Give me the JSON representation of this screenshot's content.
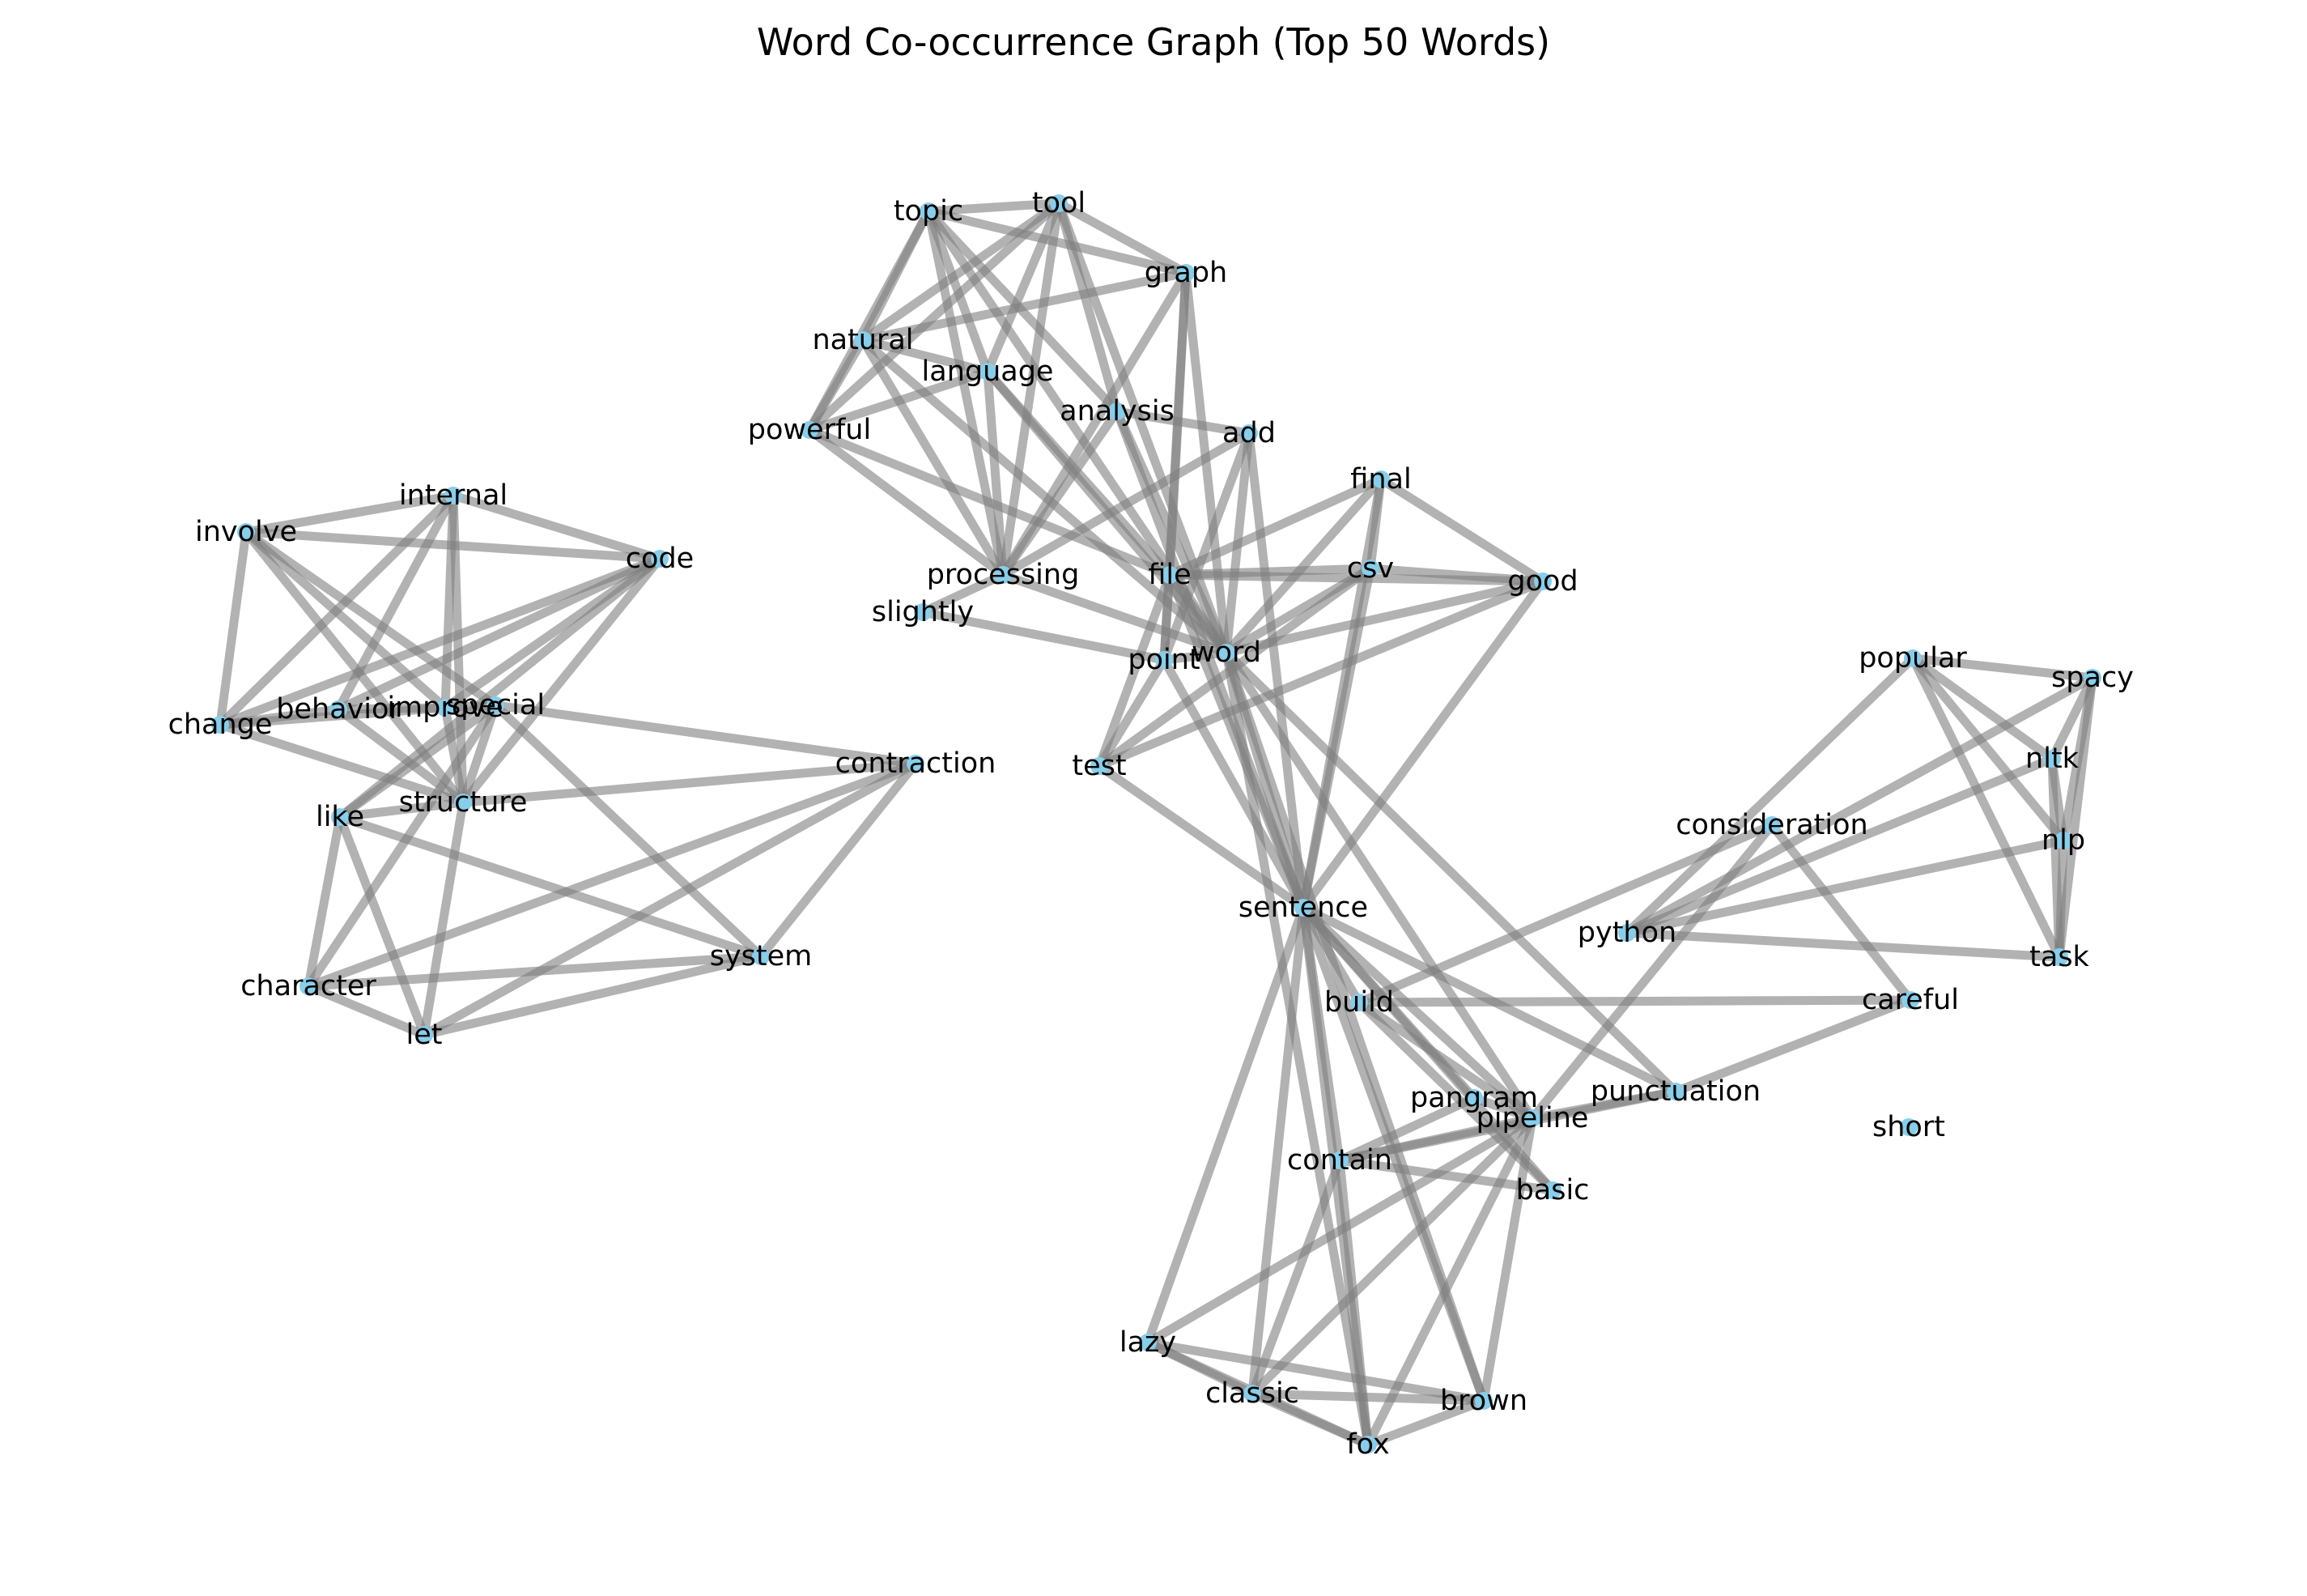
{
  "title": "Word Co-occurrence Graph (Top 50 Words)",
  "colors": {
    "node": "#87ceeb",
    "edge": "#7f7f7f",
    "text": "#000000",
    "background": "#ffffff"
  },
  "nodes": [
    {
      "id": "topic",
      "label": "topic"
    },
    {
      "id": "tool",
      "label": "tool"
    },
    {
      "id": "graph",
      "label": "graph"
    },
    {
      "id": "natural",
      "label": "natural"
    },
    {
      "id": "language",
      "label": "language"
    },
    {
      "id": "powerful",
      "label": "powerful"
    },
    {
      "id": "analysis",
      "label": "analysis"
    },
    {
      "id": "add",
      "label": "add"
    },
    {
      "id": "final",
      "label": "final"
    },
    {
      "id": "csv",
      "label": "csv"
    },
    {
      "id": "good",
      "label": "good"
    },
    {
      "id": "file",
      "label": "file"
    },
    {
      "id": "processing",
      "label": "processing"
    },
    {
      "id": "slightly",
      "label": "slightly"
    },
    {
      "id": "point",
      "label": "point"
    },
    {
      "id": "word",
      "label": "word"
    },
    {
      "id": "test",
      "label": "test"
    },
    {
      "id": "sentence",
      "label": "sentence"
    },
    {
      "id": "internal",
      "label": "internal"
    },
    {
      "id": "involve",
      "label": "involve"
    },
    {
      "id": "code",
      "label": "code"
    },
    {
      "id": "change",
      "label": "change"
    },
    {
      "id": "behavior",
      "label": "behavior"
    },
    {
      "id": "improve",
      "label": "improve"
    },
    {
      "id": "special",
      "label": "special"
    },
    {
      "id": "structure",
      "label": "structure"
    },
    {
      "id": "contraction",
      "label": "contraction"
    },
    {
      "id": "like",
      "label": "like"
    },
    {
      "id": "character",
      "label": "character"
    },
    {
      "id": "system",
      "label": "system"
    },
    {
      "id": "let",
      "label": "let"
    },
    {
      "id": "popular",
      "label": "popular"
    },
    {
      "id": "spacy",
      "label": "spacy"
    },
    {
      "id": "nltk",
      "label": "nltk"
    },
    {
      "id": "nlp",
      "label": "nlp"
    },
    {
      "id": "consideration",
      "label": "consideration"
    },
    {
      "id": "python",
      "label": "python"
    },
    {
      "id": "task",
      "label": "task"
    },
    {
      "id": "careful",
      "label": "careful"
    },
    {
      "id": "build",
      "label": "build"
    },
    {
      "id": "pangram",
      "label": "pangram"
    },
    {
      "id": "pipeline",
      "label": "pipeline"
    },
    {
      "id": "punctuation",
      "label": "punctuation"
    },
    {
      "id": "contain",
      "label": "contain"
    },
    {
      "id": "basic",
      "label": "basic"
    },
    {
      "id": "short",
      "label": "short"
    },
    {
      "id": "lazy",
      "label": "lazy"
    },
    {
      "id": "classic",
      "label": "classic"
    },
    {
      "id": "brown",
      "label": "brown"
    },
    {
      "id": "fox",
      "label": "fox"
    }
  ],
  "edges": [
    [
      "topic",
      "tool"
    ],
    [
      "topic",
      "graph"
    ],
    [
      "topic",
      "natural"
    ],
    [
      "topic",
      "language"
    ],
    [
      "topic",
      "powerful"
    ],
    [
      "topic",
      "processing"
    ],
    [
      "topic",
      "word"
    ],
    [
      "topic",
      "analysis"
    ],
    [
      "tool",
      "graph"
    ],
    [
      "tool",
      "natural"
    ],
    [
      "tool",
      "language"
    ],
    [
      "tool",
      "powerful"
    ],
    [
      "tool",
      "processing"
    ],
    [
      "tool",
      "word"
    ],
    [
      "tool",
      "analysis"
    ],
    [
      "graph",
      "natural"
    ],
    [
      "graph",
      "processing"
    ],
    [
      "graph",
      "word"
    ],
    [
      "graph",
      "file"
    ],
    [
      "graph",
      "point"
    ],
    [
      "natural",
      "language"
    ],
    [
      "natural",
      "powerful"
    ],
    [
      "natural",
      "processing"
    ],
    [
      "natural",
      "word"
    ],
    [
      "language",
      "powerful"
    ],
    [
      "language",
      "processing"
    ],
    [
      "language",
      "word"
    ],
    [
      "language",
      "file"
    ],
    [
      "powerful",
      "processing"
    ],
    [
      "powerful",
      "file"
    ],
    [
      "analysis",
      "add"
    ],
    [
      "analysis",
      "word"
    ],
    [
      "analysis",
      "sentence"
    ],
    [
      "analysis",
      "processing"
    ],
    [
      "add",
      "processing"
    ],
    [
      "add",
      "point"
    ],
    [
      "add",
      "word"
    ],
    [
      "add",
      "sentence"
    ],
    [
      "final",
      "file"
    ],
    [
      "final",
      "csv"
    ],
    [
      "final",
      "good"
    ],
    [
      "final",
      "word"
    ],
    [
      "final",
      "sentence"
    ],
    [
      "csv",
      "file"
    ],
    [
      "csv",
      "good"
    ],
    [
      "csv",
      "word"
    ],
    [
      "csv",
      "test"
    ],
    [
      "csv",
      "sentence"
    ],
    [
      "good",
      "file"
    ],
    [
      "good",
      "word"
    ],
    [
      "good",
      "test"
    ],
    [
      "good",
      "sentence"
    ],
    [
      "file",
      "word"
    ],
    [
      "file",
      "point"
    ],
    [
      "file",
      "sentence"
    ],
    [
      "file",
      "test"
    ],
    [
      "processing",
      "slightly"
    ],
    [
      "processing",
      "word"
    ],
    [
      "slightly",
      "point"
    ],
    [
      "point",
      "word"
    ],
    [
      "point",
      "test"
    ],
    [
      "point",
      "sentence"
    ],
    [
      "word",
      "sentence"
    ],
    [
      "word",
      "punctuation"
    ],
    [
      "word",
      "brown"
    ],
    [
      "word",
      "fox"
    ],
    [
      "word",
      "pipeline"
    ],
    [
      "test",
      "sentence"
    ],
    [
      "sentence",
      "build"
    ],
    [
      "sentence",
      "pipeline"
    ],
    [
      "sentence",
      "pangram"
    ],
    [
      "sentence",
      "punctuation"
    ],
    [
      "sentence",
      "contain"
    ],
    [
      "sentence",
      "basic"
    ],
    [
      "sentence",
      "lazy"
    ],
    [
      "sentence",
      "classic"
    ],
    [
      "sentence",
      "fox"
    ],
    [
      "sentence",
      "brown"
    ],
    [
      "internal",
      "involve"
    ],
    [
      "internal",
      "code"
    ],
    [
      "internal",
      "change"
    ],
    [
      "internal",
      "behavior"
    ],
    [
      "internal",
      "improve"
    ],
    [
      "internal",
      "structure"
    ],
    [
      "involve",
      "code"
    ],
    [
      "involve",
      "change"
    ],
    [
      "involve",
      "improve"
    ],
    [
      "involve",
      "structure"
    ],
    [
      "involve",
      "special"
    ],
    [
      "code",
      "change"
    ],
    [
      "code",
      "behavior"
    ],
    [
      "code",
      "improve"
    ],
    [
      "code",
      "structure"
    ],
    [
      "code",
      "like"
    ],
    [
      "change",
      "behavior"
    ],
    [
      "change",
      "improve"
    ],
    [
      "change",
      "structure"
    ],
    [
      "behavior",
      "improve"
    ],
    [
      "behavior",
      "structure"
    ],
    [
      "improve",
      "special"
    ],
    [
      "improve",
      "structure"
    ],
    [
      "special",
      "contraction"
    ],
    [
      "special",
      "system"
    ],
    [
      "special",
      "like"
    ],
    [
      "special",
      "character"
    ],
    [
      "special",
      "structure"
    ],
    [
      "structure",
      "contraction"
    ],
    [
      "structure",
      "let"
    ],
    [
      "structure",
      "like"
    ],
    [
      "contraction",
      "character"
    ],
    [
      "contraction",
      "let"
    ],
    [
      "contraction",
      "system"
    ],
    [
      "like",
      "character"
    ],
    [
      "like",
      "let"
    ],
    [
      "like",
      "system"
    ],
    [
      "character",
      "system"
    ],
    [
      "character",
      "let"
    ],
    [
      "system",
      "let"
    ],
    [
      "popular",
      "spacy"
    ],
    [
      "popular",
      "nltk"
    ],
    [
      "popular",
      "nlp"
    ],
    [
      "popular",
      "task"
    ],
    [
      "popular",
      "python"
    ],
    [
      "spacy",
      "nltk"
    ],
    [
      "spacy",
      "nlp"
    ],
    [
      "spacy",
      "task"
    ],
    [
      "spacy",
      "python"
    ],
    [
      "nltk",
      "nlp"
    ],
    [
      "nltk",
      "task"
    ],
    [
      "nltk",
      "python"
    ],
    [
      "nlp",
      "task"
    ],
    [
      "nlp",
      "python"
    ],
    [
      "python",
      "task"
    ],
    [
      "consideration",
      "careful"
    ],
    [
      "consideration",
      "build"
    ],
    [
      "consideration",
      "pipeline"
    ],
    [
      "careful",
      "build"
    ],
    [
      "careful",
      "punctuation"
    ],
    [
      "build",
      "pipeline"
    ],
    [
      "build",
      "basic"
    ],
    [
      "pangram",
      "pipeline"
    ],
    [
      "pangram",
      "contain"
    ],
    [
      "pipeline",
      "contain"
    ],
    [
      "pipeline",
      "fox"
    ],
    [
      "pipeline",
      "classic"
    ],
    [
      "pipeline",
      "brown"
    ],
    [
      "pipeline",
      "lazy"
    ],
    [
      "punctuation",
      "contain"
    ],
    [
      "punctuation",
      "pipeline"
    ],
    [
      "contain",
      "basic"
    ],
    [
      "contain",
      "classic"
    ],
    [
      "contain",
      "fox"
    ],
    [
      "lazy",
      "classic"
    ],
    [
      "lazy",
      "brown"
    ],
    [
      "lazy",
      "fox"
    ],
    [
      "classic",
      "brown"
    ],
    [
      "classic",
      "fox"
    ],
    [
      "brown",
      "fox"
    ]
  ]
}
